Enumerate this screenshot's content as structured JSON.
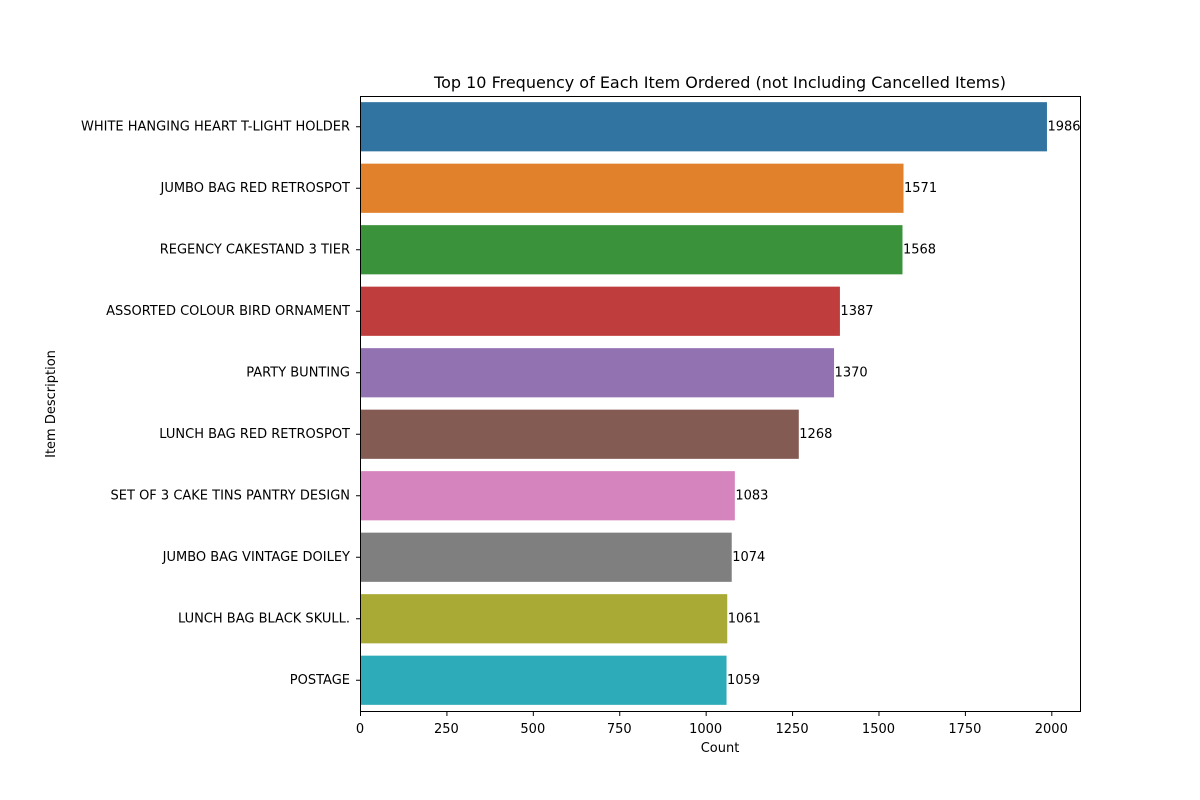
{
  "chart_data": {
    "type": "bar",
    "orientation": "horizontal",
    "title": "Top 10 Frequency of Each Item Ordered (not Including Cancelled Items)",
    "xlabel": "Count",
    "ylabel": "Item Description",
    "xlim": [
      0,
      2083
    ],
    "xticks": [
      0,
      250,
      500,
      750,
      1000,
      1250,
      1500,
      1750,
      2000
    ],
    "grid": false,
    "categories": [
      "WHITE HANGING HEART T-LIGHT HOLDER",
      "JUMBO BAG RED RETROSPOT",
      "REGENCY CAKESTAND 3 TIER",
      "ASSORTED COLOUR BIRD ORNAMENT",
      "PARTY BUNTING",
      "LUNCH BAG RED RETROSPOT",
      "SET OF 3 CAKE TINS PANTRY DESIGN ",
      "JUMBO BAG VINTAGE DOILEY ",
      "LUNCH BAG  BLACK SKULL.",
      "POSTAGE"
    ],
    "values": [
      1986,
      1571,
      1568,
      1387,
      1370,
      1268,
      1083,
      1074,
      1061,
      1059
    ],
    "data_labels": [
      "1986",
      "1571",
      "1568",
      "1387",
      "1370",
      "1268",
      "1083",
      "1074",
      "1061",
      "1059"
    ],
    "colors": [
      "#3274a1",
      "#e1812c",
      "#3a923a",
      "#c03d3e",
      "#9372b2",
      "#845b53",
      "#d684bd",
      "#7f7f7f",
      "#a9aa35",
      "#2eabb8"
    ]
  }
}
